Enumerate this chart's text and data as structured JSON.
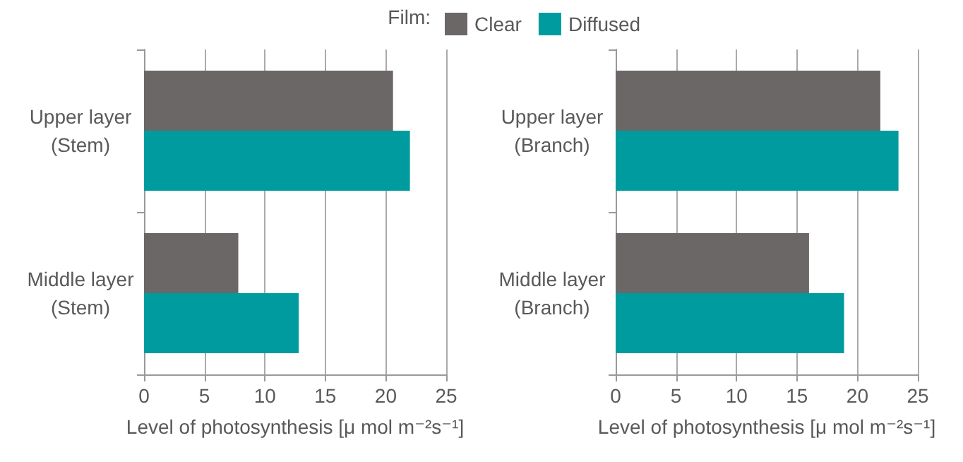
{
  "chart_data": [
    {
      "type": "bar",
      "orientation": "horizontal",
      "legend_title": "Film:",
      "legend": "top",
      "grid": "x",
      "xlabel": "Level of photosynthesis [μ mol m⁻²s⁻¹]",
      "categories": [
        "Upper layer\n(Stem)",
        "Middle layer\n(Stem)"
      ],
      "xlim": [
        0,
        25
      ],
      "xticks": [
        0,
        5,
        10,
        15,
        20,
        25
      ],
      "series": [
        {
          "name": "Clear",
          "color": "#6b6766",
          "values": [
            20.6,
            7.8
          ]
        },
        {
          "name": "Diffused",
          "color": "#009b9e",
          "values": [
            22.0,
            12.8
          ]
        }
      ]
    },
    {
      "type": "bar",
      "orientation": "horizontal",
      "grid": "x",
      "xlabel": "Level of photosynthesis [μ mol m⁻²s⁻¹]",
      "categories": [
        "Upper layer\n(Branch)",
        "Middle layer\n(Branch)"
      ],
      "xlim": [
        0,
        25
      ],
      "xticks": [
        0,
        5,
        10,
        15,
        20,
        25
      ],
      "series": [
        {
          "color": "#6b6766",
          "values": [
            21.9,
            16.0
          ]
        },
        {
          "color": "#009b9e",
          "values": [
            23.4,
            18.9
          ]
        }
      ]
    }
  ]
}
